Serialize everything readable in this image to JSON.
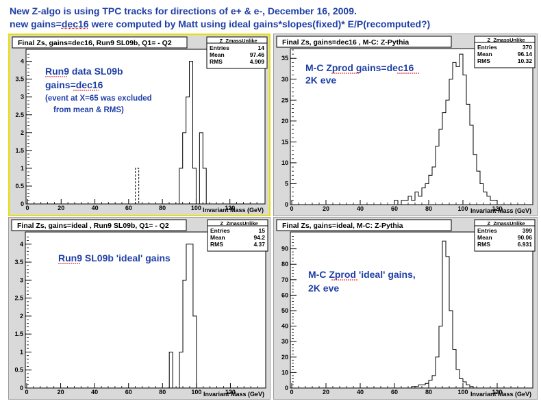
{
  "headline": {
    "line1": "New Z-algo is using TPC tracks for directions of e+ & e-,  December 16, 2009.",
    "line2": "new gains=dec16 were computed by Matt using ideal gains*slopes(fixed)* E/P(recomputed?)"
  },
  "stats_labels": {
    "entries": "Entries",
    "mean": "Mean",
    "rms": "RMS"
  },
  "chart_data": [
    {
      "type": "bar",
      "title": "Final Zs, gains=dec16, Run9 SL09b, Q1= - Q2",
      "xlabel": "Invariant Mass (GeV)",
      "xlim": [
        0,
        140
      ],
      "ylim": [
        0,
        4.3
      ],
      "xticks": [
        0,
        20,
        40,
        60,
        80,
        100,
        120
      ],
      "yticks": [
        0,
        0.5,
        1,
        1.5,
        2,
        2.5,
        3,
        3.5,
        4
      ],
      "stats": {
        "name": "_Z_ZmassUnlike",
        "entries": "14",
        "mean": "97.46",
        "rms": "4.909"
      },
      "annotations": [
        "Run9 data SL09b",
        "gains=dec16",
        "(event at X=65 was excluded",
        "from mean & RMS)"
      ],
      "bins": [
        [
          90,
          92,
          1
        ],
        [
          92,
          94,
          2
        ],
        [
          94,
          96,
          3
        ],
        [
          96,
          98,
          4
        ],
        [
          98,
          100,
          1
        ],
        [
          100,
          102,
          0
        ],
        [
          102,
          104,
          2
        ],
        [
          104,
          106,
          1
        ]
      ],
      "excluded_bins": [
        [
          64,
          66,
          1
        ]
      ]
    },
    {
      "type": "bar",
      "title": "Final Zs, gains=dec16 , M-C: Z-Pythia",
      "xlabel": "Invariant Mass (GeV)",
      "xlim": [
        0,
        140
      ],
      "ylim": [
        0,
        37
      ],
      "xticks": [
        0,
        20,
        40,
        60,
        80,
        100,
        120
      ],
      "yticks": [
        0,
        5,
        10,
        15,
        20,
        25,
        30,
        35
      ],
      "stats": {
        "name": "_Z_ZmassUnlike",
        "entries": "370",
        "mean": "96.14",
        "rms": "10.32"
      },
      "annotations": [
        "M-C Zprod   gains=dec16",
        "2K eve"
      ],
      "bins": [
        [
          60,
          62,
          1
        ],
        [
          62,
          64,
          0
        ],
        [
          64,
          66,
          1
        ],
        [
          66,
          68,
          1
        ],
        [
          68,
          70,
          2
        ],
        [
          70,
          72,
          1
        ],
        [
          72,
          74,
          3
        ],
        [
          74,
          76,
          2
        ],
        [
          76,
          78,
          4
        ],
        [
          78,
          80,
          5
        ],
        [
          80,
          82,
          7
        ],
        [
          82,
          84,
          9
        ],
        [
          84,
          86,
          14
        ],
        [
          86,
          88,
          18
        ],
        [
          88,
          90,
          22
        ],
        [
          90,
          92,
          25
        ],
        [
          92,
          94,
          30
        ],
        [
          94,
          96,
          34
        ],
        [
          96,
          98,
          33
        ],
        [
          98,
          100,
          36
        ],
        [
          100,
          102,
          31
        ],
        [
          102,
          104,
          24
        ],
        [
          104,
          106,
          19
        ],
        [
          106,
          108,
          12
        ],
        [
          108,
          110,
          8
        ],
        [
          110,
          112,
          5
        ],
        [
          112,
          114,
          3
        ],
        [
          114,
          116,
          2
        ],
        [
          116,
          118,
          1
        ],
        [
          118,
          120,
          1
        ]
      ]
    },
    {
      "type": "bar",
      "title": "Final Zs, gains=ideal , Run9 SL09b, Q1= - Q2",
      "xlabel": "Invariant Mass (GeV)",
      "xlim": [
        0,
        140
      ],
      "ylim": [
        0,
        4.3
      ],
      "xticks": [
        0,
        20,
        40,
        60,
        80,
        100,
        120
      ],
      "yticks": [
        0,
        0.5,
        1,
        1.5,
        2,
        2.5,
        3,
        3.5,
        4
      ],
      "stats": {
        "name": "_Z_ZmassUnlike",
        "entries": "15",
        "mean": "94.2",
        "rms": "4.37"
      },
      "annotations": [
        "Run9 SL09b  'ideal' gains"
      ],
      "bins": [
        [
          84,
          86,
          1
        ],
        [
          86,
          88,
          0
        ],
        [
          88,
          90,
          0
        ],
        [
          90,
          92,
          1
        ],
        [
          92,
          94,
          3
        ],
        [
          94,
          96,
          4
        ],
        [
          96,
          98,
          4
        ],
        [
          98,
          100,
          2
        ]
      ]
    },
    {
      "type": "bar",
      "title": "Final Zs, gains=ideal, M-C: Z-Pythia",
      "xlabel": "Invariant Mass (GeV)",
      "xlim": [
        0,
        140
      ],
      "ylim": [
        0,
        100
      ],
      "xticks": [
        0,
        20,
        40,
        60,
        80,
        100,
        120
      ],
      "yticks": [
        0,
        10,
        20,
        30,
        40,
        50,
        60,
        70,
        80,
        90
      ],
      "stats": {
        "name": "_Z_ZmassUnlike",
        "entries": "399",
        "mean": "90.06",
        "rms": "6.931"
      },
      "annotations": [
        "M-C Zprod  'ideal' gains,",
        "2K eve"
      ],
      "bins": [
        [
          70,
          72,
          1
        ],
        [
          72,
          74,
          1
        ],
        [
          74,
          76,
          2
        ],
        [
          76,
          78,
          2
        ],
        [
          78,
          80,
          3
        ],
        [
          80,
          82,
          5
        ],
        [
          82,
          84,
          8
        ],
        [
          84,
          86,
          20
        ],
        [
          86,
          88,
          40
        ],
        [
          88,
          90,
          95
        ],
        [
          90,
          92,
          85
        ],
        [
          92,
          94,
          50
        ],
        [
          94,
          96,
          25
        ],
        [
          96,
          98,
          12
        ],
        [
          98,
          100,
          6
        ],
        [
          100,
          102,
          4
        ],
        [
          102,
          104,
          2
        ],
        [
          104,
          106,
          1
        ]
      ]
    }
  ]
}
